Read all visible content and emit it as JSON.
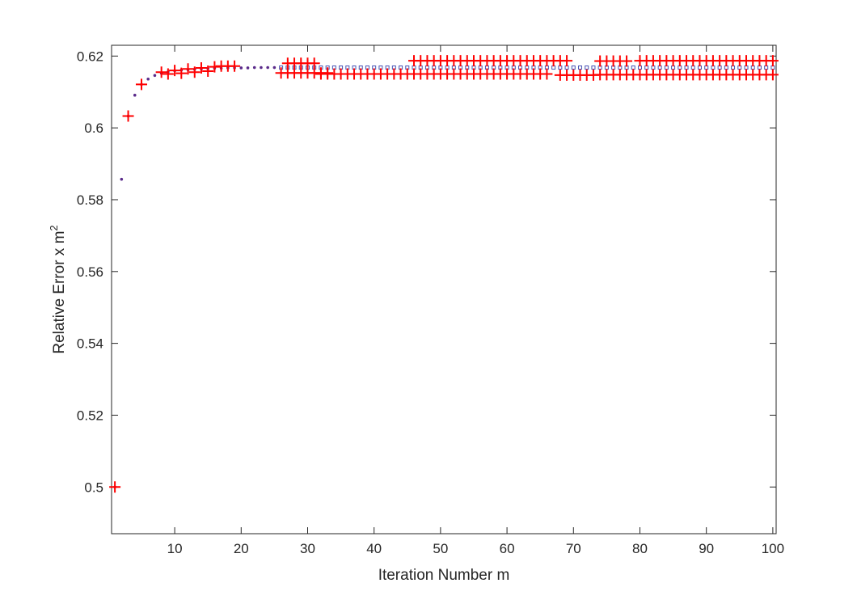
{
  "chart_data": {
    "type": "scatter",
    "title": "",
    "xlabel": "Iteration Number m",
    "ylabel_main": "Relative Error x m",
    "ylabel_sup": "2",
    "xlim": [
      0.5,
      100.5
    ],
    "ylim": [
      0.487,
      0.623
    ],
    "xticks": [
      10,
      20,
      30,
      40,
      50,
      60,
      70,
      80,
      90,
      100
    ],
    "yticks": [
      0.5,
      0.52,
      0.54,
      0.56,
      0.58,
      0.6,
      0.62
    ],
    "ytick_labels": [
      "0.5",
      "0.52",
      "0.54",
      "0.56",
      "0.58",
      "0.6",
      "0.62"
    ],
    "grid": false,
    "legend": "none",
    "series": [
      {
        "marker": "dot",
        "color": "#5a2a8a",
        "x": [
          1,
          2,
          3,
          4,
          5,
          6,
          7,
          8,
          9,
          10,
          11,
          12,
          13,
          14,
          15,
          16,
          17,
          18,
          19,
          20,
          21,
          22,
          23,
          24,
          25
        ],
        "y": [
          0.5,
          0.5857,
          0.6033,
          0.6091,
          0.6121,
          0.6136,
          0.6146,
          0.6152,
          0.6156,
          0.6159,
          0.6161,
          0.6162,
          0.6163,
          0.6164,
          0.6165,
          0.6166,
          0.6166,
          0.6167,
          0.6167,
          0.6167,
          0.6167,
          0.6168,
          0.6168,
          0.6168,
          0.6168
        ]
      },
      {
        "marker": "square",
        "color": "#4a55b5",
        "x_range": [
          26,
          100
        ],
        "y": 0.6168
      },
      {
        "marker": "plus",
        "color": "#ff0000",
        "points": [
          [
            1,
            0.5
          ],
          [
            3,
            0.6033
          ],
          [
            5,
            0.6121
          ],
          [
            8,
            0.6155
          ],
          [
            9,
            0.615
          ],
          [
            10,
            0.616
          ],
          [
            11,
            0.6152
          ],
          [
            12,
            0.6164
          ],
          [
            13,
            0.6155
          ],
          [
            14,
            0.6167
          ],
          [
            15,
            0.6158
          ],
          [
            16,
            0.617
          ],
          [
            17,
            0.6172
          ],
          [
            18,
            0.6172
          ],
          [
            19,
            0.6172
          ]
        ],
        "bands": [
          {
            "from": 26,
            "to": 33,
            "y": 0.6153
          },
          {
            "from": 27,
            "to": 31,
            "y": 0.618
          },
          {
            "from": 32,
            "to": 45,
            "y": 0.615
          },
          {
            "from": 46,
            "to": 66,
            "y": 0.615
          },
          {
            "from": 46,
            "to": 69,
            "y": 0.6187
          },
          {
            "from": 68,
            "to": 73,
            "y": 0.6147
          },
          {
            "from": 74,
            "to": 78,
            "y": 0.6186
          },
          {
            "from": 74,
            "to": 100,
            "y": 0.6148
          },
          {
            "from": 80,
            "to": 100,
            "y": 0.6187
          }
        ]
      }
    ]
  }
}
